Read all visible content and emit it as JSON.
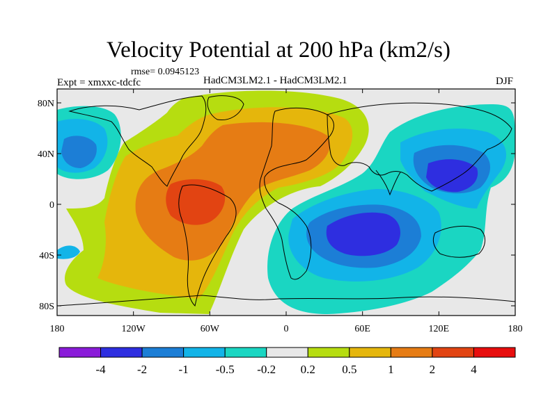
{
  "title": "Velocity Potential at 200 hPa (km2/s)",
  "rmse": "rmse= 0.0945123",
  "expt": "Expt = xmxxc-tdcfc",
  "models": "HadCM3LM2.1 - HadCM3LM2.1",
  "season": "DJF",
  "map": {
    "lon_ticks": [
      "180",
      "120W",
      "60W",
      "0",
      "60E",
      "120E",
      "180"
    ],
    "lat_ticks": [
      "80N",
      "40N",
      "0",
      "40S",
      "80S"
    ]
  },
  "colorbar": {
    "labels": [
      "-4",
      "-2",
      "-1",
      "-0.5",
      "-0.2",
      "0.2",
      "0.5",
      "1",
      "2",
      "4"
    ],
    "colors": [
      "#8a1bd9",
      "#2e2ee0",
      "#1c7ed6",
      "#12b4e8",
      "#1ad6c2",
      "#e8e8e8",
      "#b6dd10",
      "#e5b60c",
      "#e67c14",
      "#e24412",
      "#e80e0e"
    ]
  },
  "field": {
    "colors": {
      "neutral": "#e8e8e8",
      "pos_weak": "#b6dd10",
      "pos_mid": "#e5b60c",
      "pos_strong": "#e67c14",
      "pos_max": "#e24412",
      "neg_weak": "#1ad6c2",
      "neg_mid": "#12b4e8",
      "neg_strong": "#1c7ed6",
      "neg_max": "#2e2ee0"
    }
  }
}
